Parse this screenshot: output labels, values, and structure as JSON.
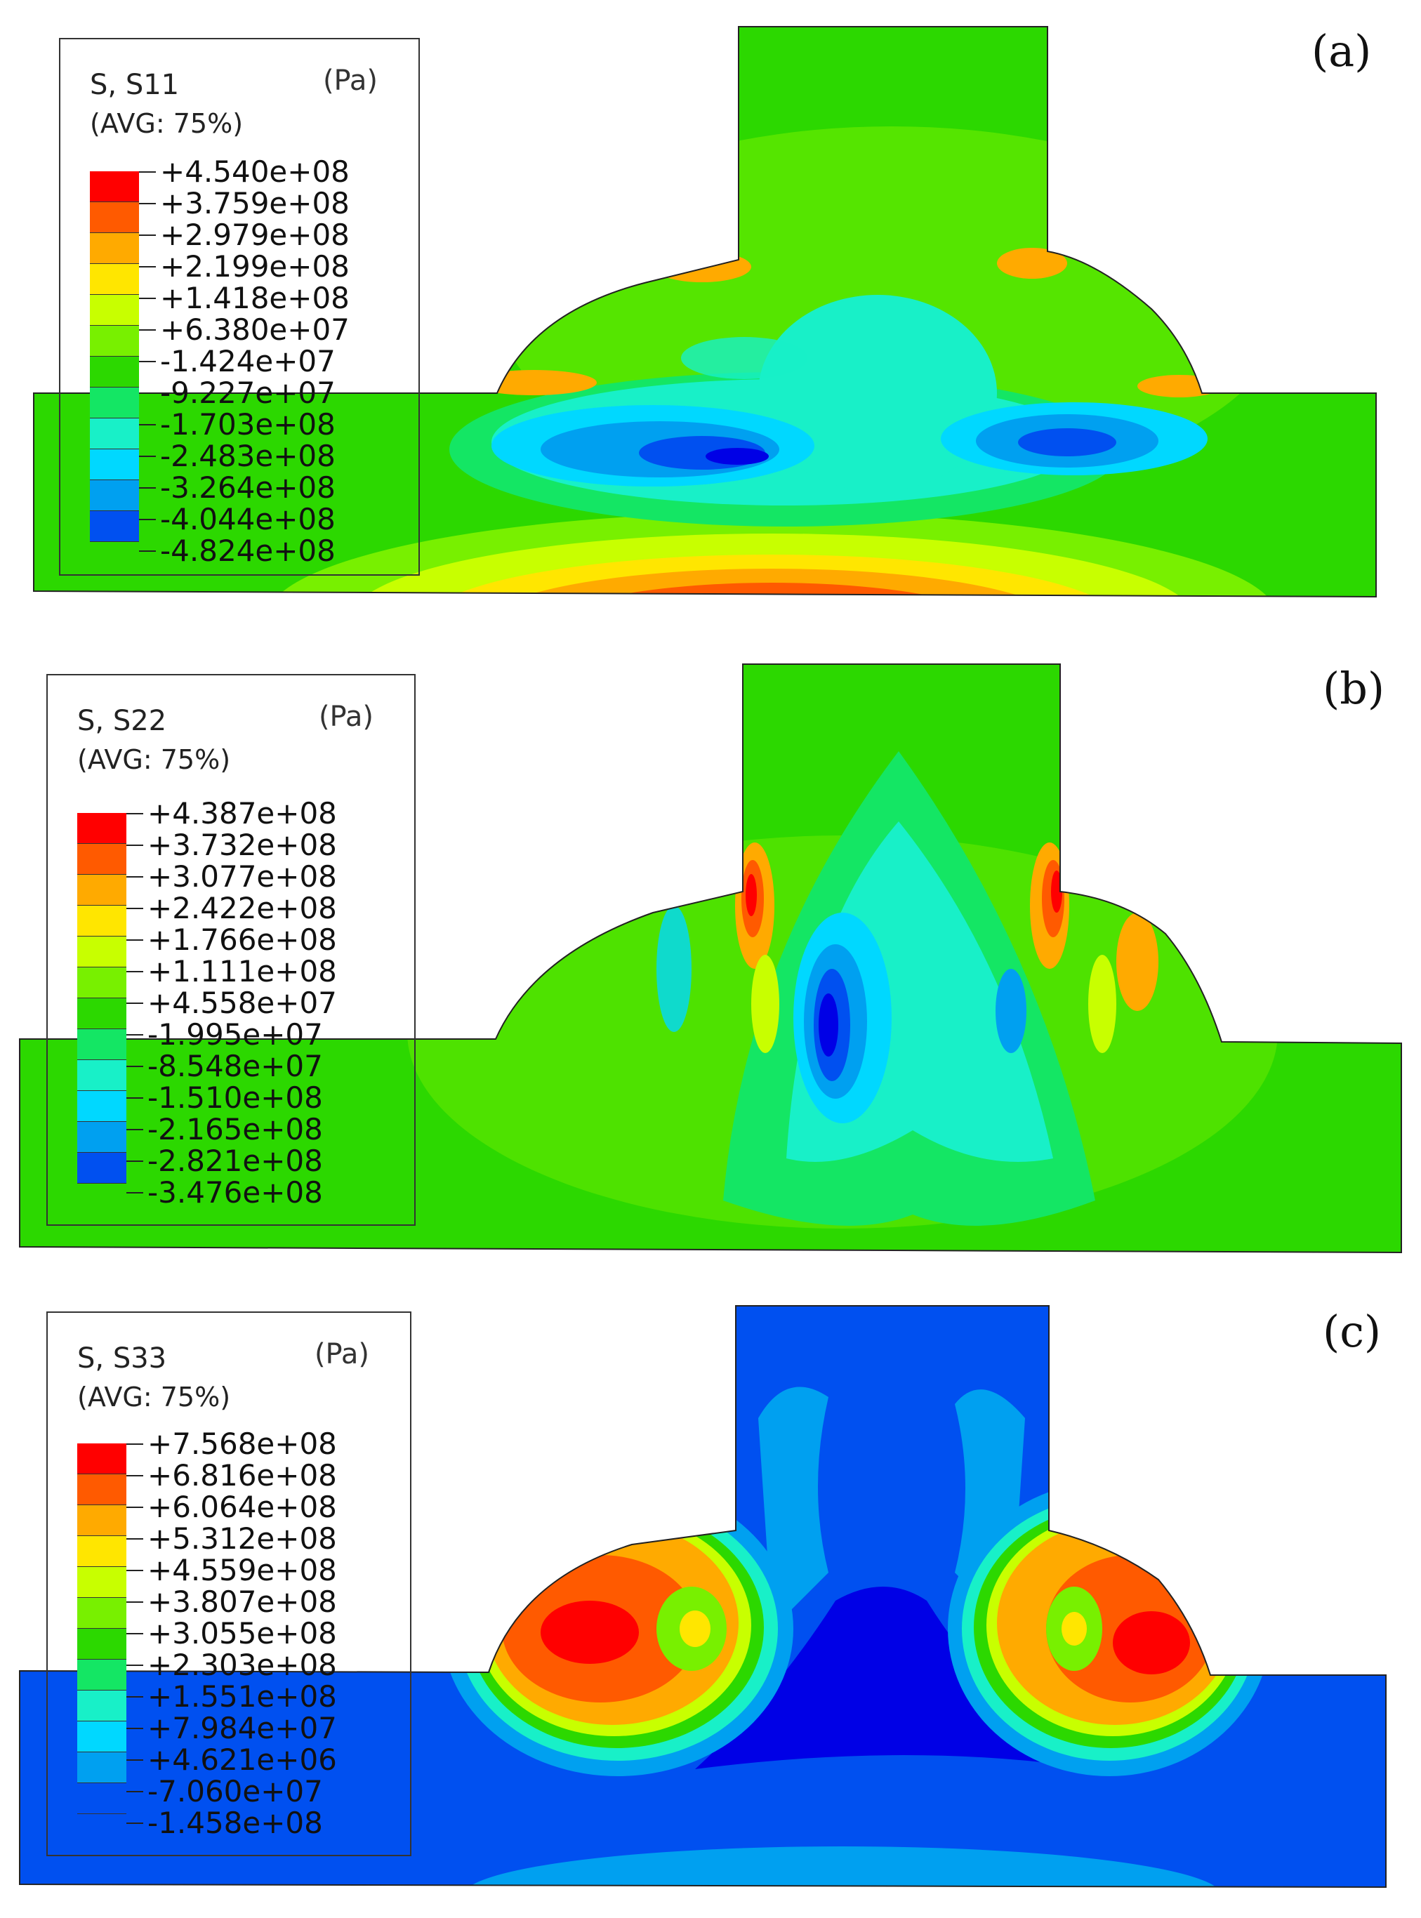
{
  "panels": [
    {
      "label": "(a)",
      "legend": {
        "title": "S, S11",
        "unit": "(Pa)",
        "avg": "AVG: 75%",
        "values": [
          "+4.540e+08",
          "+3.759e+08",
          "+2.979e+08",
          "+2.199e+08",
          "+1.418e+08",
          "+6.380e+07",
          "-1.424e+07",
          "-9.227e+07",
          "-1.703e+08",
          "-2.483e+08",
          "-3.264e+08",
          "-4.044e+08",
          "-4.824e+08"
        ]
      }
    },
    {
      "label": "(b)",
      "legend": {
        "title": "S, S22",
        "unit": "(Pa)",
        "avg": "AVG: 75%",
        "values": [
          "+4.387e+08",
          "+3.732e+08",
          "+3.077e+08",
          "+2.422e+08",
          "+1.766e+08",
          "+1.111e+08",
          "+4.558e+07",
          "-1.995e+07",
          "-8.548e+07",
          "-1.510e+08",
          "-2.165e+08",
          "-2.821e+08",
          "-3.476e+08"
        ]
      }
    },
    {
      "label": "(c)",
      "legend": {
        "title": "S, S33",
        "unit": "(Pa)",
        "avg": "AVG: 75%",
        "values": [
          "+7.568e+08",
          "+6.816e+08",
          "+6.064e+08",
          "+5.312e+08",
          "+4.559e+08",
          "+3.807e+08",
          "+3.055e+08",
          "+2.303e+08",
          "+1.551e+08",
          "+7.984e+07",
          "+4.621e+06",
          "-7.060e+07",
          "-1.458e+08"
        ]
      }
    }
  ],
  "colors": [
    "#ff0000",
    "#ff5a00",
    "#ffaa00",
    "#ffe600",
    "#c8ff00",
    "#78f000",
    "#2cd800",
    "#14e664",
    "#18f0c8",
    "#00d8ff",
    "#00a0f0",
    "#0050f0",
    "#0000e6"
  ]
}
